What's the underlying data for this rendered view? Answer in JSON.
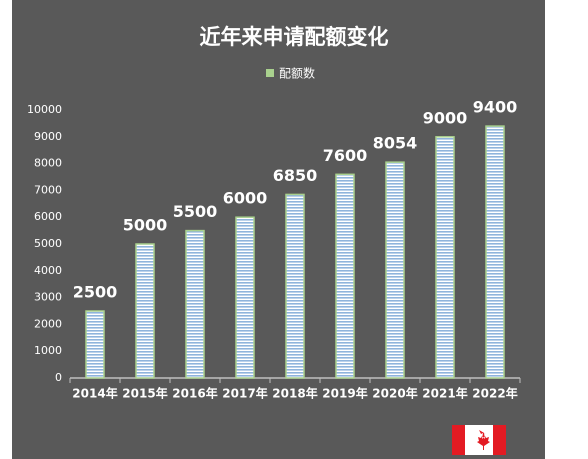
{
  "chart_data": {
    "type": "bar",
    "title": "近年来申请配额变化",
    "categories": [
      "2014年",
      "2015年",
      "2016年",
      "2017年",
      "2018年",
      "2019年",
      "2020年",
      "2021年",
      "2022年"
    ],
    "series": [
      {
        "name": "配额数",
        "color": "#a9d18e",
        "values": [
          2500,
          5000,
          5500,
          6000,
          6850,
          7600,
          8054,
          9000,
          9400
        ]
      }
    ],
    "ylim": [
      0,
      10000
    ],
    "yticks": [
      0,
      1000,
      2000,
      3000,
      4000,
      5000,
      6000,
      7000,
      8000,
      9000,
      10000
    ],
    "grid": false,
    "legend": "top"
  }
}
